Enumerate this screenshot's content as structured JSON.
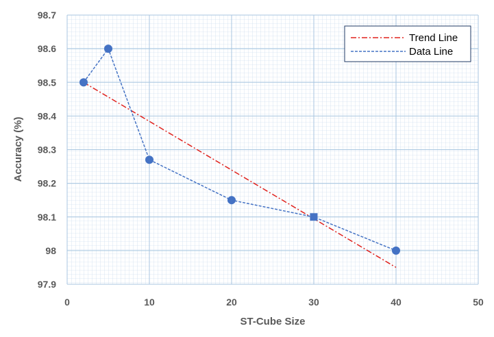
{
  "chart_data": {
    "type": "line",
    "title": "",
    "xlabel": "ST-Cube Size",
    "ylabel": "Accuracy (%)",
    "xlim": [
      0,
      50
    ],
    "ylim": [
      97.9,
      98.7
    ],
    "x_ticks": [
      "0",
      "10",
      "20",
      "30",
      "40",
      "50"
    ],
    "y_ticks": [
      "97.9",
      "98",
      "98.1",
      "98.2",
      "98.3",
      "98.4",
      "98.5",
      "98.6",
      "98.7"
    ],
    "grid": true,
    "legend_position": "top-right",
    "series": [
      {
        "name": "Trend Line",
        "style": "dash-dot",
        "color": "#e0201b",
        "x": [
          2,
          40
        ],
        "y": [
          98.5,
          97.95
        ]
      },
      {
        "name": "Data Line",
        "style": "dashed",
        "color": "#4472c4",
        "x": [
          2,
          5,
          10,
          20,
          30,
          40
        ],
        "y": [
          98.5,
          98.6,
          98.27,
          98.15,
          98.1,
          98.0
        ]
      }
    ]
  }
}
